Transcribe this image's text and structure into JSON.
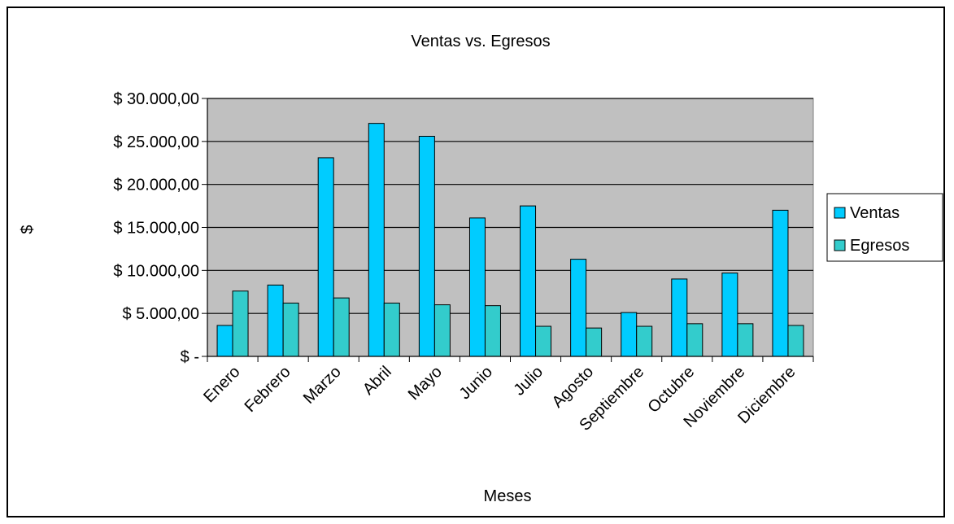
{
  "chart_data": {
    "type": "bar",
    "title": "Ventas vs. Egresos",
    "xlabel": "Meses",
    "ylabel": "$",
    "categories": [
      "Enero",
      "Febrero",
      "Marzo",
      "Abril",
      "Mayo",
      "Junio",
      "Julio",
      "Agosto",
      "Septiembre",
      "Octubre",
      "Noviembre",
      "Diciembre"
    ],
    "series": [
      {
        "name": "Ventas",
        "color": "#00ccff",
        "values": [
          3600,
          8300,
          23100,
          27100,
          25600,
          16100,
          17500,
          11300,
          5100,
          9000,
          9700,
          17000
        ]
      },
      {
        "name": "Egresos",
        "color": "#33cccc",
        "values": [
          7600,
          6200,
          6800,
          6200,
          6000,
          5900,
          3500,
          3300,
          3500,
          3800,
          3800,
          3600
        ]
      }
    ],
    "ylim": [
      0,
      30000
    ],
    "yticks": [
      0,
      5000,
      10000,
      15000,
      20000,
      25000,
      30000
    ],
    "ytick_labels": [
      "$ -",
      "$ 5.000,00",
      "$ 10.000,00",
      "$ 15.000,00",
      "$ 20.000,00",
      "$ 25.000,00",
      "$ 30.000,00"
    ],
    "grid": true,
    "plot_background": "#c0c0c0",
    "legend": "right"
  }
}
